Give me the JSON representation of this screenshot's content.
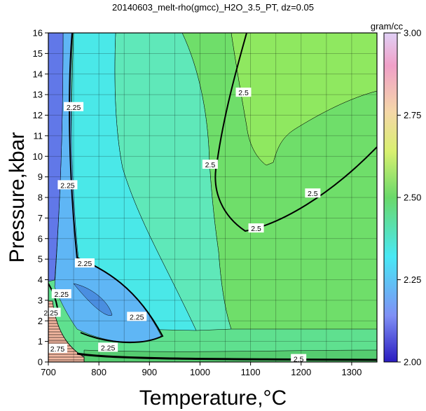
{
  "chart_data": {
    "type": "heatmap",
    "title": "20140603_melt-rho(gmcc)_H2O_3.5_PT, dz=0.05",
    "xlabel": "Temperature,°C",
    "ylabel": "Pressure,kbar",
    "xlim": [
      700,
      1350
    ],
    "ylim": [
      0,
      16
    ],
    "x_ticks": [
      "700",
      "800",
      "900",
      "1000",
      "1100",
      "1200",
      "1300"
    ],
    "y_ticks": [
      "0",
      "1",
      "2",
      "3",
      "4",
      "5",
      "6",
      "7",
      "8",
      "9",
      "10",
      "11",
      "12",
      "13",
      "14",
      "15",
      "16"
    ],
    "grid": true,
    "grid_x_step": 50,
    "grid_y_step": 1,
    "contour_interval": 0.05,
    "labeled_contours": [
      2.25,
      2.5,
      2.75
    ],
    "colorbar": {
      "label": "gram/cc",
      "range": [
        2.0,
        3.0
      ],
      "ticks": [
        "2.00",
        "2.25",
        "2.50",
        "2.75",
        "3.00"
      ],
      "colors": [
        "#2a1cc0",
        "#7f8ff5",
        "#48e8f5",
        "#6ad96a",
        "#d9f070",
        "#f5d7a8",
        "#f0a0c8",
        "#e0d0f5"
      ]
    },
    "contour_labels": [
      {
        "text": "2.25",
        "x": 705,
        "y": 2.4
      },
      {
        "text": "2.25",
        "x": 726,
        "y": 3.3
      },
      {
        "text": "2.25",
        "x": 738,
        "y": 8.6
      },
      {
        "text": "2.25",
        "x": 750,
        "y": 12.4
      },
      {
        "text": "2.25",
        "x": 772,
        "y": 4.8
      },
      {
        "text": "2.25",
        "x": 875,
        "y": 2.2
      },
      {
        "text": "2.25",
        "x": 818,
        "y": 0.7
      },
      {
        "text": "2.5",
        "x": 1086,
        "y": 13.1
      },
      {
        "text": "2.5",
        "x": 1020,
        "y": 9.6
      },
      {
        "text": "2.5",
        "x": 1111,
        "y": 6.5
      },
      {
        "text": "2.5",
        "x": 1223,
        "y": 8.2
      },
      {
        "text": "2.5",
        "x": 1195,
        "y": 0.15
      },
      {
        "text": "2.75",
        "x": 718,
        "y": 0.65
      }
    ]
  }
}
